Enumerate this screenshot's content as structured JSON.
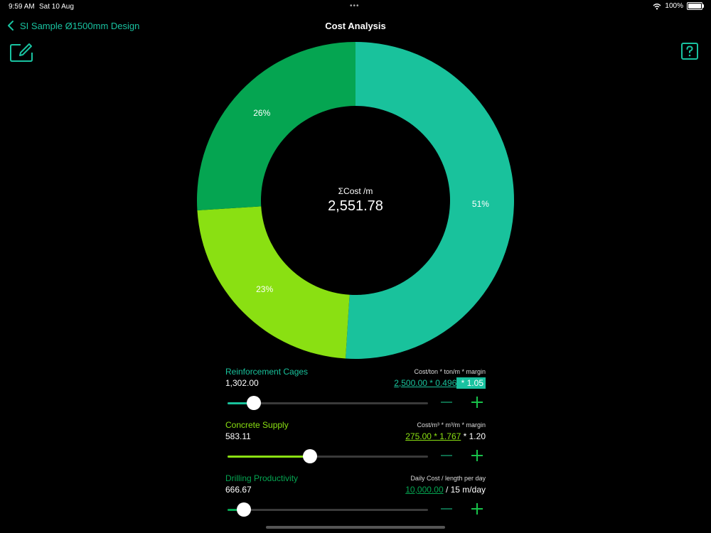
{
  "status_bar": {
    "time": "9:59 AM",
    "date": "Sat 10 Aug",
    "battery": "100%"
  },
  "nav": {
    "back_label": "SI Sample Ø1500mm Design",
    "title": "Cost Analysis"
  },
  "colors": {
    "accent": "#19c2a0",
    "reinforcement": "#1abf9a",
    "concrete": "#8ae012",
    "drilling": "#05a551"
  },
  "chart_data": {
    "type": "pie",
    "donut": true,
    "center_label": "ΣCost /m",
    "center_value": "2,551.78",
    "slices": [
      {
        "name": "Reinforcement Cages",
        "percent": 51,
        "label": "51%",
        "color": "#19c29c"
      },
      {
        "name": "Concrete Supply",
        "percent": 23,
        "label": "23%",
        "color": "#8ae012"
      },
      {
        "name": "Drilling Productivity",
        "percent": 26,
        "label": "26%",
        "color": "#05a551"
      }
    ]
  },
  "rows": [
    {
      "name": "Reinforcement Cages",
      "value": "1,302.00",
      "formula": "Cost/ton * ton/m * margin",
      "calc_link": "2,500.00 * 0.496",
      "calc_sel": " * 1.05",
      "calc_tail": "",
      "slider": 0.13
    },
    {
      "name": "Concrete Supply",
      "value": "583.11",
      "formula": "Cost/m³ *  m³/m * margin",
      "calc_link": "275.00 * 1.767",
      "calc_sel": "",
      "calc_tail": " * 1.20",
      "slider": 0.41
    },
    {
      "name": "Drilling Productivity",
      "value": "666.67",
      "formula": "Daily Cost / length per day",
      "calc_link": "10,000.00",
      "calc_sel": "",
      "calc_tail": " / 15 m/day",
      "slider": 0.08
    }
  ]
}
